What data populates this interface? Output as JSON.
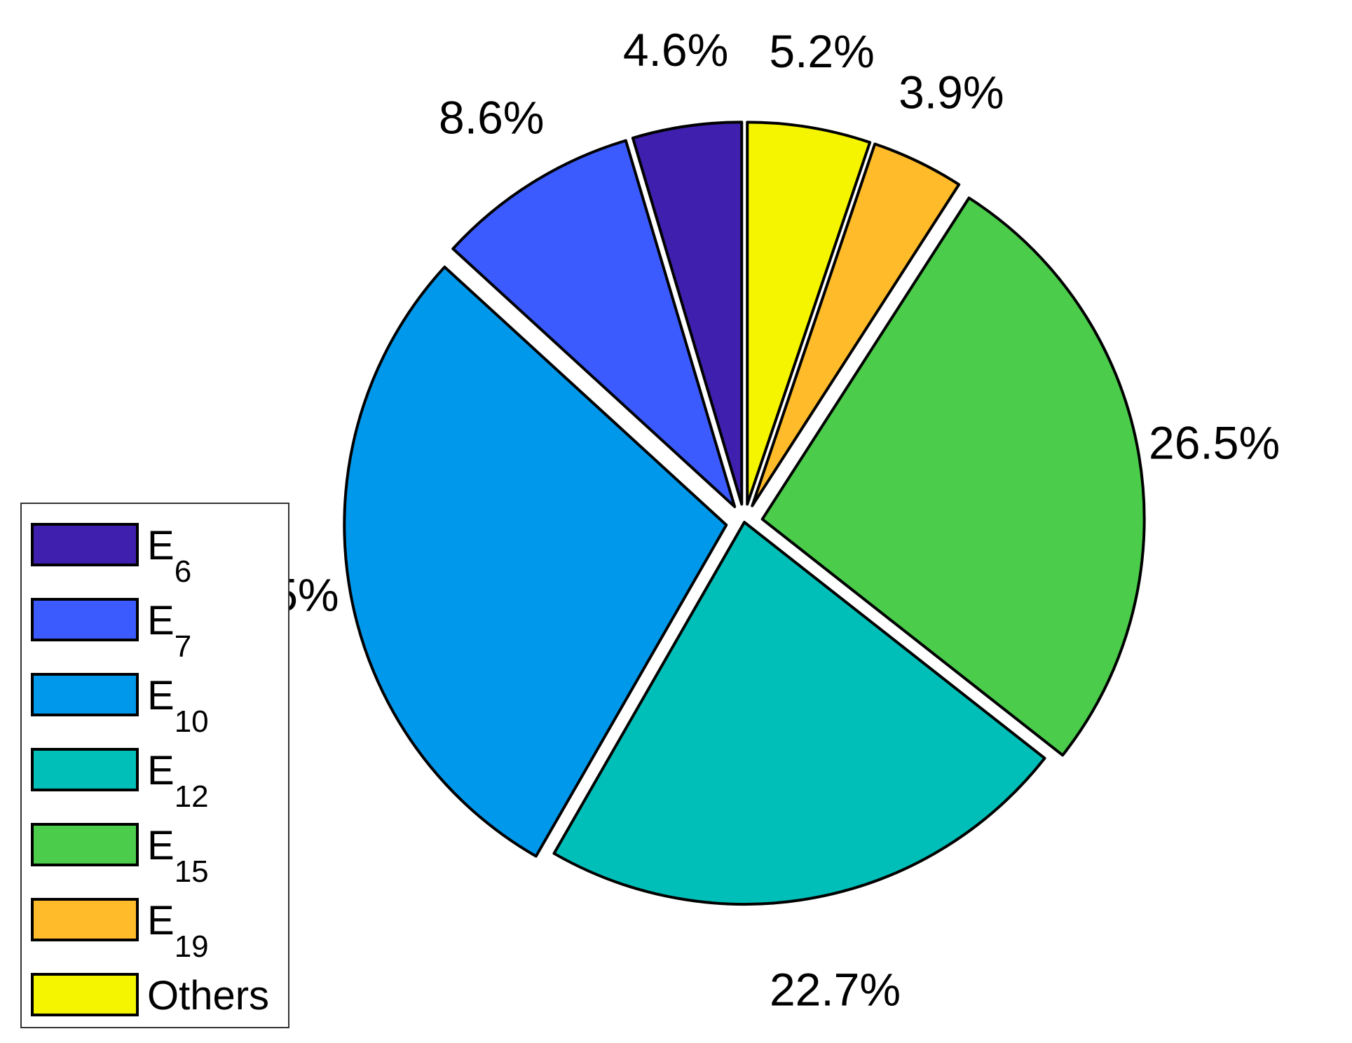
{
  "chart_data": {
    "type": "pie",
    "title": "",
    "slices": [
      {
        "label": "E6",
        "main": "E",
        "sub": "6",
        "value": 4.6,
        "value_label": "4.6%",
        "color": "#3e1fae",
        "exploded": true
      },
      {
        "label": "E7",
        "main": "E",
        "sub": "7",
        "value": 8.6,
        "value_label": "8.6%",
        "color": "#3b5bff",
        "exploded": true
      },
      {
        "label": "E10",
        "main": "E",
        "sub": "10",
        "value": 28.5,
        "value_label": "28.5%",
        "color": "#0098ea",
        "exploded": true
      },
      {
        "label": "E12",
        "main": "E",
        "sub": "12",
        "value": 22.7,
        "value_label": "22.7%",
        "color": "#00bfb8",
        "exploded": false
      },
      {
        "label": "E15",
        "main": "E",
        "sub": "15",
        "value": 26.5,
        "value_label": "26.5%",
        "color": "#4bcc4b",
        "exploded": true
      },
      {
        "label": "E19",
        "main": "E",
        "sub": "19",
        "value": 3.9,
        "value_label": "3.9%",
        "color": "#ffbb2a",
        "exploded": true
      },
      {
        "label": "Others",
        "main": "Others",
        "sub": "",
        "value": 5.2,
        "value_label": "5.2%",
        "color": "#f5f500",
        "exploded": true
      }
    ],
    "legend_position": "bottom-left"
  }
}
